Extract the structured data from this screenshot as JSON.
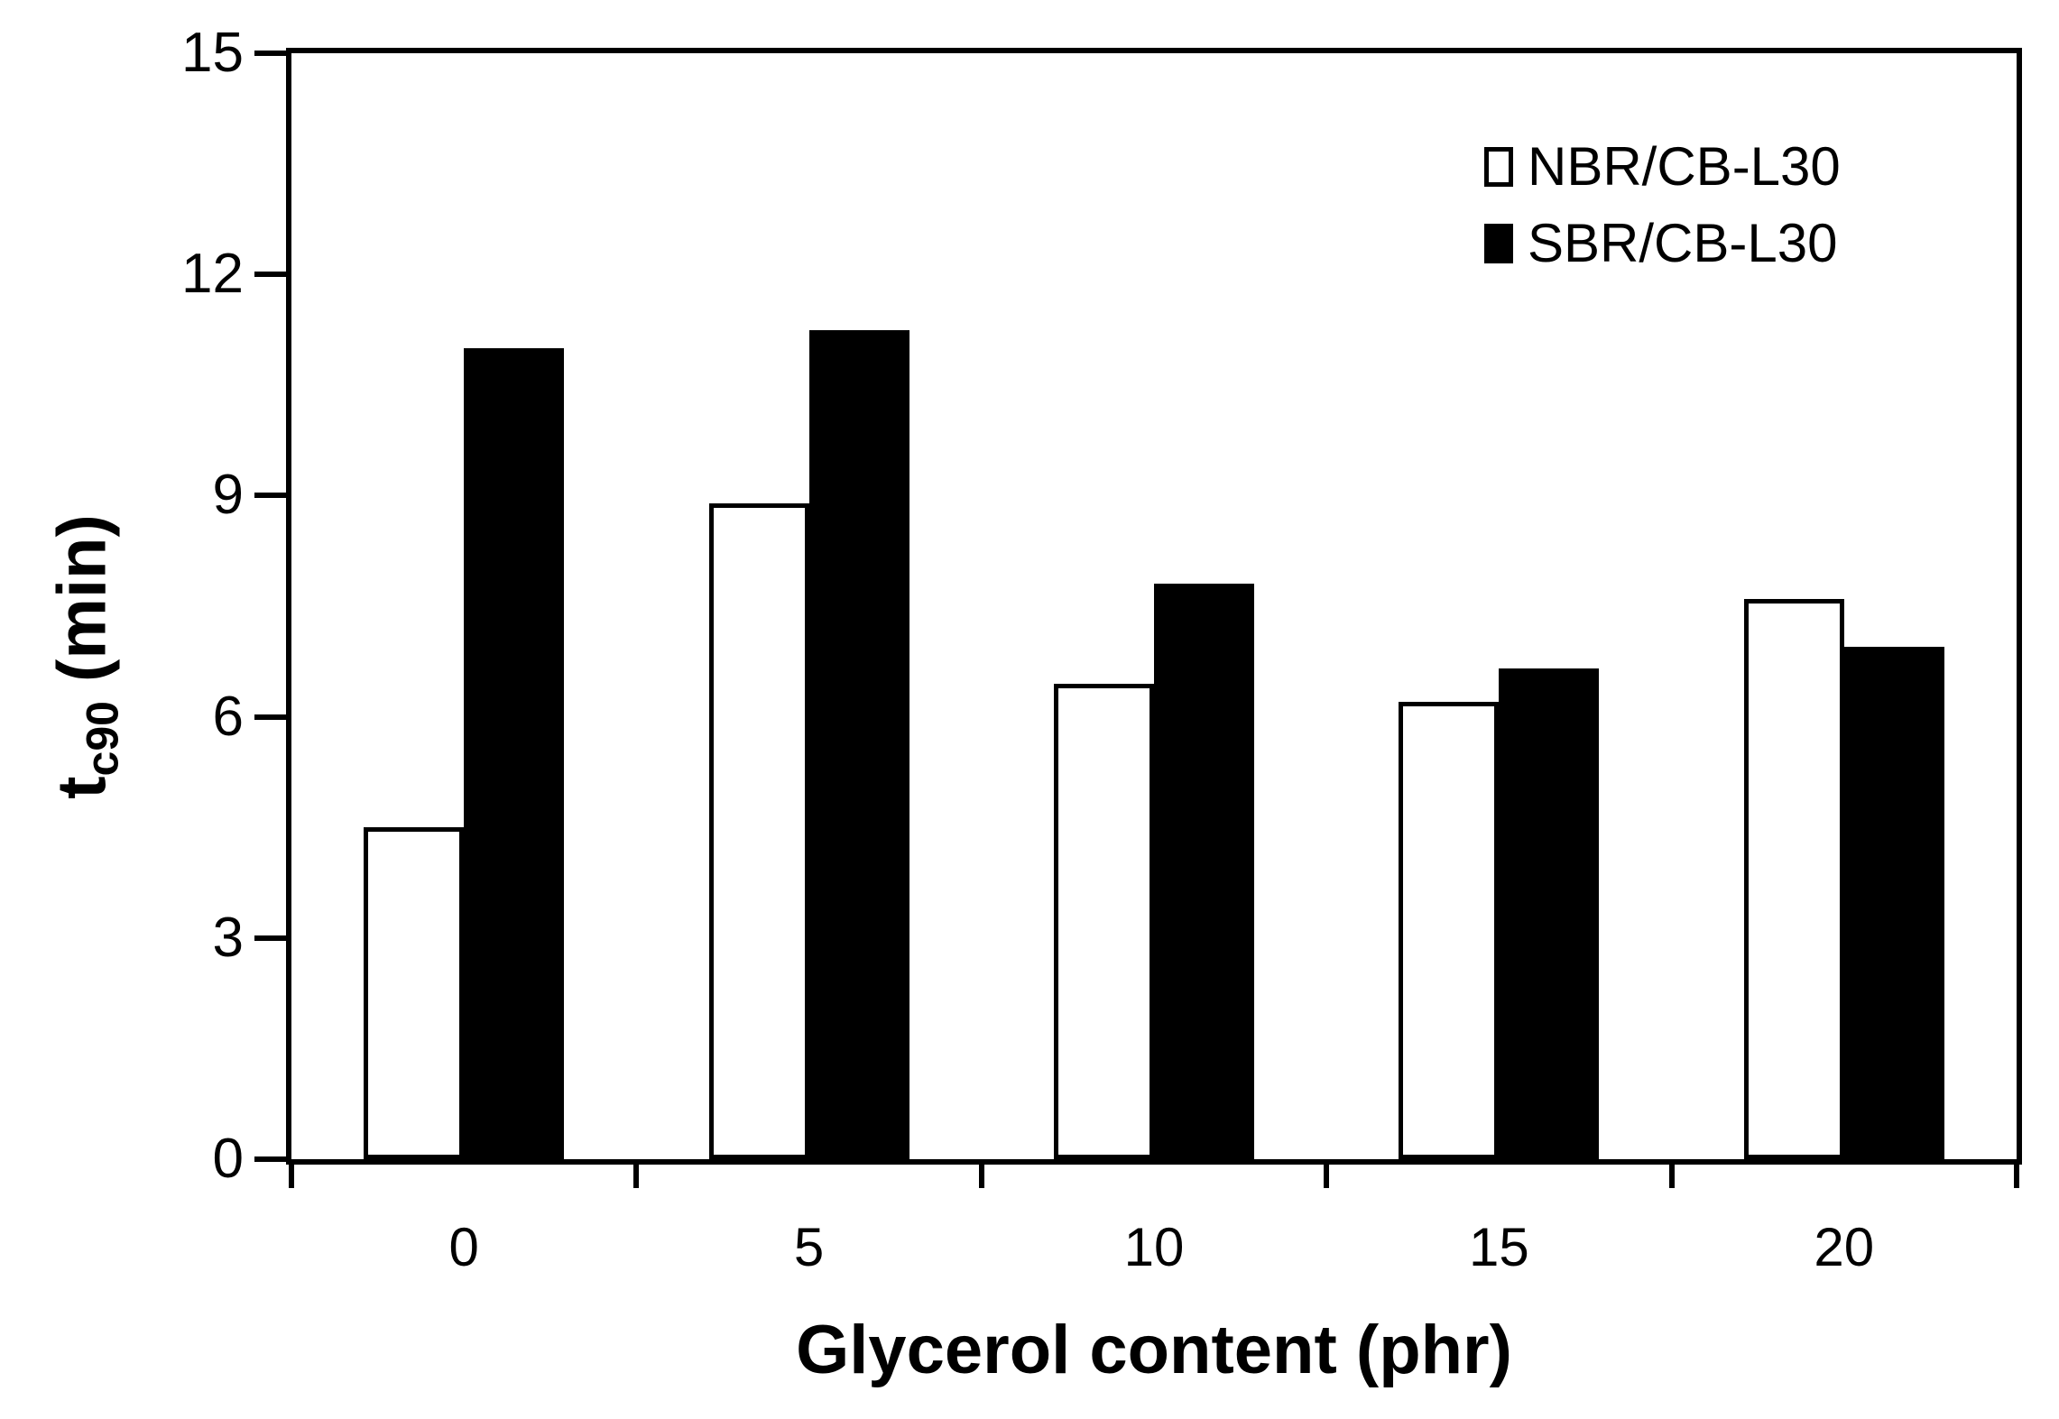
{
  "figure": {
    "background_color": "#ffffff",
    "frame_color": "#000000"
  },
  "chart_data": {
    "type": "bar",
    "title": "",
    "xlabel": "Glycerol content (phr)",
    "ylabel": "tc90 (min)",
    "ylabel_rich": {
      "base": "t",
      "subscript": "c90",
      "suffix": " (min)"
    },
    "categories": [
      "0",
      "5",
      "10",
      "15",
      "20"
    ],
    "series": [
      {
        "name": "NBR/CB-L30",
        "fill": "#ffffff",
        "border": "#000000",
        "values": [
          4.5,
          8.9,
          6.45,
          6.2,
          7.6
        ]
      },
      {
        "name": "SBR/CB-L30",
        "fill": "#000000",
        "border": "#000000",
        "values": [
          11.0,
          11.25,
          7.8,
          6.65,
          6.95
        ]
      }
    ],
    "ylim": [
      0,
      15
    ],
    "yticks": [
      0,
      3,
      6,
      9,
      12,
      15
    ],
    "grid": false,
    "legend_position": "top-right-inside"
  }
}
